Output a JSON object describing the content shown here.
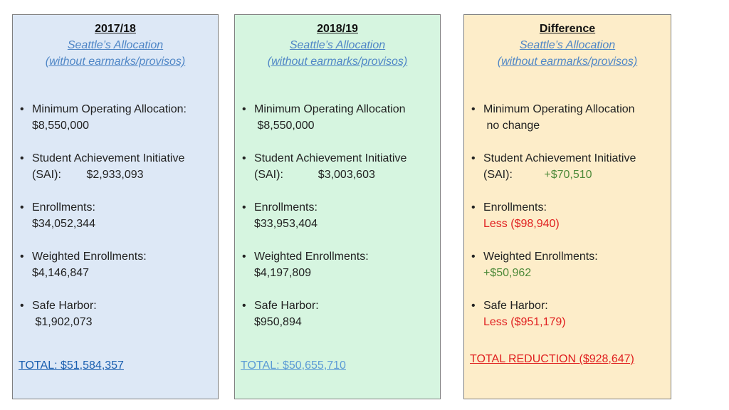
{
  "panels": [
    {
      "title": "2017/18",
      "subtitle1": "Seattle’s Allocation",
      "subtitle2": "(without earmarks/provisos)",
      "items": [
        {
          "line1": "Minimum Operating Allocation:",
          "line2": "$8,550,000"
        },
        {
          "line1": "Student Achievement Initiative",
          "line2": "(SAI):        $2,933,093"
        },
        {
          "line1": "Enrollments:",
          "line2": "$34,052,344"
        },
        {
          "line1": "Weighted Enrollments:",
          "line2": "$4,146,847"
        },
        {
          "line1": "Safe Harbor:",
          "line2": " $1,902,073"
        }
      ],
      "total": "TOTAL: $51,584,357"
    },
    {
      "title": "2018/19",
      "subtitle1": "Seattle’s Allocation",
      "subtitle2": "(without earmarks/provisos)",
      "items": [
        {
          "line1": "Minimum Operating Allocation",
          "line2": " $8,550,000"
        },
        {
          "line1": "Student Achievement Initiative",
          "line2": "(SAI):           $3,003,603"
        },
        {
          "line1": "Enrollments:",
          "line2": "$33,953,404"
        },
        {
          "line1": "Weighted Enrollments:",
          "line2": "$4,197,809"
        },
        {
          "line1": "Safe Harbor:",
          "line2": "$950,894"
        }
      ],
      "total": "TOTAL: $50,655,710"
    },
    {
      "title": "Difference",
      "subtitle1": "Seattle’s Allocation",
      "subtitle2": "(without earmarks/provisos)",
      "items": [
        {
          "line1": "Minimum Operating Allocation",
          "line2": " no change"
        },
        {
          "line1": "Student Achievement Initiative",
          "line2a": "(SAI):          ",
          "line2b": "+$70,510"
        },
        {
          "line1": "Enrollments:",
          "line2": "Less ($98,940)"
        },
        {
          "line1": "Weighted Enrollments:",
          "line2": "+$50,962"
        },
        {
          "line1": "Safe Harbor:",
          "line2": "Less ($951,179)"
        }
      ],
      "total": "TOTAL REDUCTION ($928,647)"
    }
  ],
  "colors": {
    "panel1_bg": "#dde8f6",
    "panel2_bg": "#d6f5e0",
    "panel3_bg": "#fdedc9",
    "increase": "#4e8a3a",
    "decrease": "#e02020"
  }
}
